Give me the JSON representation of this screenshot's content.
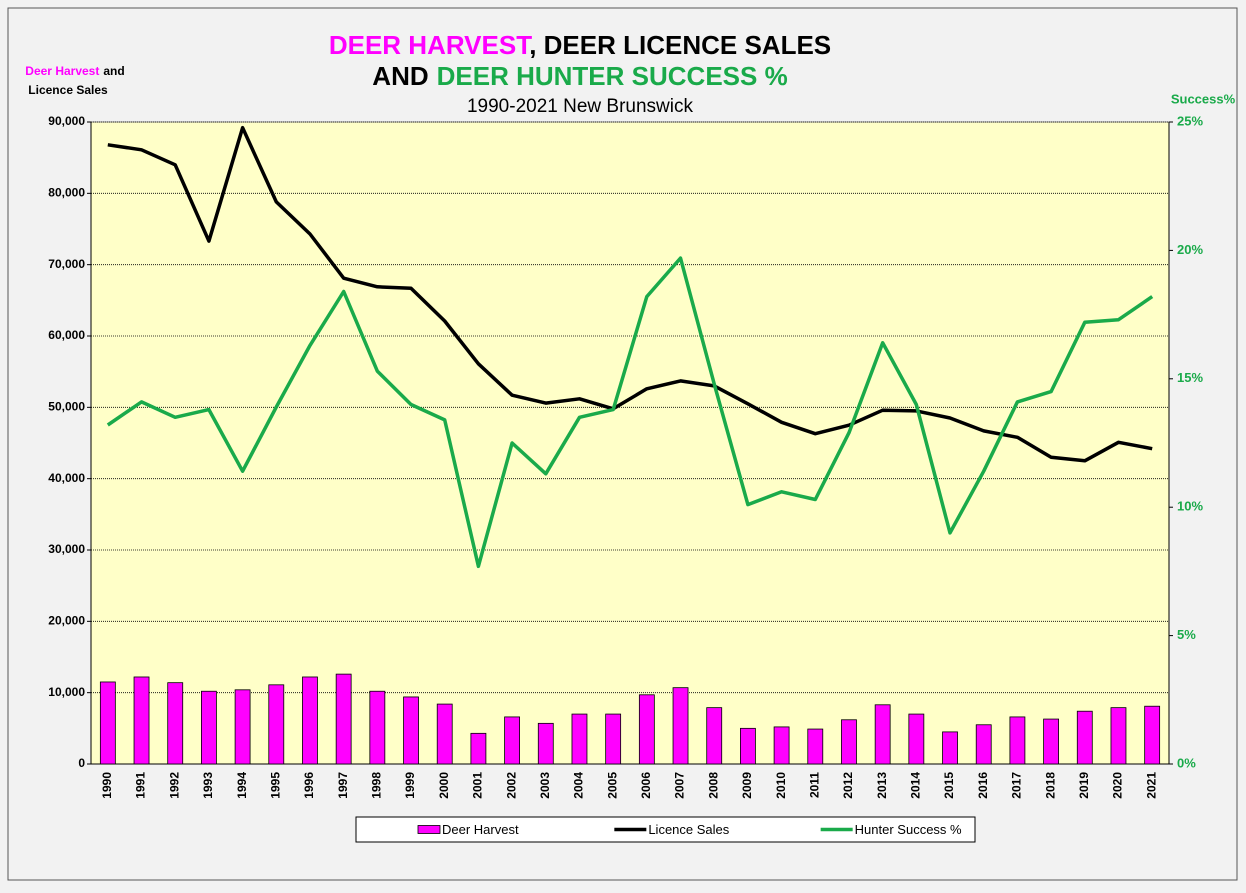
{
  "chart_data": {
    "type": "combo",
    "title": [
      [
        {
          "text": "DEER HARVEST",
          "color": "#ff00ff"
        },
        {
          "text": ", DEER LICENCE SALES",
          "color": "#000000"
        }
      ],
      [
        {
          "text": "AND",
          "color": "#000000"
        },
        {
          "text": "DEER HUNTER SUCCESS %",
          "color": "#1aaa4a"
        }
      ]
    ],
    "subtitle": "1990-2021 New Brunswick",
    "y_label": [
      [
        {
          "text": "Deer Harvest",
          "color": "#ff00ff"
        },
        {
          "text": "and",
          "color": "#000000"
        }
      ],
      [
        {
          "text": "Licence Sales",
          "color": "#000000"
        }
      ]
    ],
    "y2_label": "Success%",
    "categories": [
      "1990",
      "1991",
      "1992",
      "1993",
      "1994",
      "1995",
      "1996",
      "1997",
      "1998",
      "1999",
      "2000",
      "2001",
      "2002",
      "2003",
      "2004",
      "2005",
      "2006",
      "2007",
      "2008",
      "2009",
      "2010",
      "2011",
      "2012",
      "2013",
      "2014",
      "2015",
      "2016",
      "2017",
      "2018",
      "2019",
      "2020",
      "2021"
    ],
    "series": [
      {
        "name": "Deer Harvest",
        "type": "bar",
        "color": "#ff00ff",
        "axis": "y",
        "values": [
          11500,
          12200,
          11400,
          10200,
          10400,
          11100,
          12200,
          12600,
          10200,
          9400,
          8400,
          4300,
          6600,
          5700,
          7000,
          7000,
          9700,
          10700,
          7900,
          5000,
          5200,
          4900,
          6200,
          8300,
          7000,
          4500,
          5500,
          6600,
          6300,
          7400,
          7900,
          8100
        ]
      },
      {
        "name": "Licence Sales",
        "type": "line",
        "color": "#000000",
        "axis": "y",
        "values": [
          86800,
          86100,
          84000,
          73300,
          89200,
          78800,
          74300,
          68100,
          66900,
          66700,
          62100,
          56100,
          51700,
          50600,
          51200,
          49800,
          52600,
          53700,
          53000,
          50500,
          47900,
          46300,
          47500,
          49600,
          49500,
          48500,
          46700,
          45800,
          43000,
          42500,
          45100,
          44200
        ]
      },
      {
        "name": "Hunter Success %",
        "type": "line",
        "color": "#1aaa4a",
        "axis": "y2",
        "values": [
          13.2,
          14.1,
          13.5,
          13.8,
          11.4,
          13.9,
          16.3,
          18.4,
          15.3,
          14.0,
          13.4,
          7.7,
          12.5,
          11.3,
          13.5,
          13.8,
          18.2,
          19.7,
          14.8,
          10.1,
          10.6,
          10.3,
          12.9,
          16.4,
          14.0,
          9.0,
          11.4,
          14.1,
          14.5,
          17.2,
          17.3,
          18.2
        ]
      }
    ],
    "ylim": [
      0,
      90000
    ],
    "yticks": [
      {
        "value": 0,
        "label": "0"
      },
      {
        "value": 10000,
        "label": "10,000"
      },
      {
        "value": 20000,
        "label": "20,000"
      },
      {
        "value": 30000,
        "label": "30,000"
      },
      {
        "value": 40000,
        "label": "40,000"
      },
      {
        "value": 50000,
        "label": "50,000"
      },
      {
        "value": 60000,
        "label": "60,000"
      },
      {
        "value": 70000,
        "label": "70,000"
      },
      {
        "value": 80000,
        "label": "80,000"
      },
      {
        "value": 90000,
        "label": "90,000"
      }
    ],
    "y2lim": [
      0,
      25
    ],
    "y2ticks": [
      {
        "value": 0,
        "label": "0%"
      },
      {
        "value": 5,
        "label": "5%"
      },
      {
        "value": 10,
        "label": "10%"
      },
      {
        "value": 15,
        "label": "15%"
      },
      {
        "value": 20,
        "label": "20%"
      },
      {
        "value": 25,
        "label": "25%"
      }
    ],
    "y2_color": "#1aaa4a",
    "grid": true,
    "plot_background": "#ffffc8",
    "legend": "bottom"
  }
}
